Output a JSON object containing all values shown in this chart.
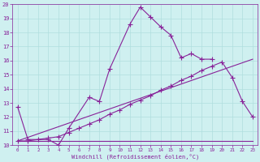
{
  "xlabel": "Windchill (Refroidissement éolien,°C)",
  "background_color": "#cff0f0",
  "grid_color": "#b0dede",
  "line_color": "#882299",
  "x_hours": [
    0,
    1,
    2,
    3,
    4,
    5,
    6,
    7,
    8,
    9,
    10,
    11,
    12,
    13,
    14,
    15,
    16,
    17,
    18,
    19,
    20,
    21,
    22,
    23
  ],
  "series1_x": [
    0,
    1,
    3,
    4,
    5,
    7,
    8,
    9,
    11,
    12,
    13,
    14,
    15,
    16,
    17,
    18,
    19
  ],
  "series1_y": [
    12.7,
    10.4,
    10.4,
    10.0,
    11.2,
    13.4,
    13.1,
    15.4,
    18.6,
    19.8,
    19.1,
    18.4,
    17.8,
    16.2,
    16.5,
    16.1,
    16.1
  ],
  "series2_x": [
    0,
    23
  ],
  "series2_y": [
    10.3,
    10.3
  ],
  "series3_x": [
    0,
    23
  ],
  "series3_y": [
    10.3,
    16.1
  ],
  "series4_x": [
    0,
    1,
    2,
    3,
    4,
    5,
    6,
    7,
    8,
    9,
    10,
    11,
    12,
    13,
    14,
    15,
    16,
    17,
    18,
    19,
    20,
    21,
    22,
    23
  ],
  "series4_y": [
    10.3,
    10.3,
    10.4,
    10.5,
    10.6,
    10.9,
    11.2,
    11.5,
    11.8,
    12.2,
    12.5,
    12.9,
    13.2,
    13.5,
    13.9,
    14.2,
    14.6,
    14.9,
    15.3,
    15.6,
    15.9,
    14.8,
    13.1,
    12.0
  ],
  "ylim": [
    10,
    20
  ],
  "xlim_min": -0.5,
  "xlim_max": 23.5,
  "yticks": [
    10,
    11,
    12,
    13,
    14,
    15,
    16,
    17,
    18,
    19,
    20
  ],
  "xticks": [
    0,
    1,
    2,
    3,
    4,
    5,
    6,
    7,
    8,
    9,
    10,
    11,
    12,
    13,
    14,
    15,
    16,
    17,
    18,
    19,
    20,
    21,
    22,
    23
  ],
  "figwidth": 3.2,
  "figheight": 2.0,
  "dpi": 100
}
